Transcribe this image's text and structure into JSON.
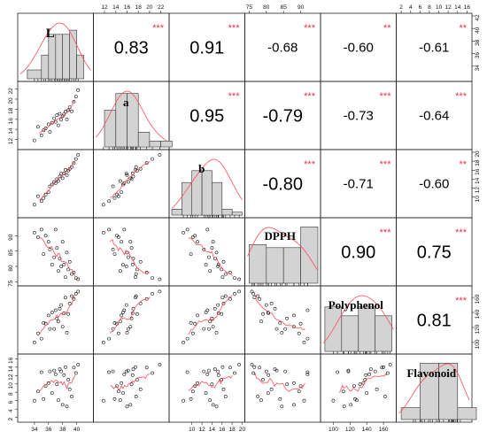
{
  "chart_data": {
    "type": "scatter-matrix",
    "variables": [
      "L",
      "a",
      "b",
      "DPPH",
      "Polyphenol",
      "Flavonoid"
    ],
    "ranges": [
      [
        32,
        42
      ],
      [
        10.5,
        23
      ],
      [
        6,
        20
      ],
      [
        74.5,
        95
      ],
      [
        88,
        172
      ],
      [
        1.5,
        16.5
      ]
    ],
    "axis_ticks": {
      "bottom": [
        {
          "var": 0,
          "ticks": [
            34,
            36,
            38,
            40
          ]
        },
        {
          "var": 2,
          "ticks": [
            10,
            12,
            14,
            16,
            18,
            20
          ]
        },
        {
          "var": 4,
          "ticks": [
            100,
            120,
            140,
            160
          ]
        }
      ],
      "top": [
        {
          "var": 1,
          "ticks": [
            12,
            14,
            16,
            18,
            20,
            22
          ]
        },
        {
          "var": 3,
          "ticks": [
            75,
            80,
            85,
            90
          ]
        },
        {
          "var": 5,
          "ticks": [
            2,
            4,
            6,
            8,
            10,
            12,
            14,
            16
          ]
        }
      ],
      "left": [
        {
          "var": 1,
          "ticks": [
            12,
            14,
            16,
            18,
            20,
            22
          ]
        },
        {
          "var": 3,
          "ticks": [
            75,
            80,
            85,
            90
          ]
        },
        {
          "var": 5,
          "ticks": [
            2,
            4,
            6,
            8,
            10,
            12,
            14,
            16
          ]
        }
      ],
      "right": [
        {
          "var": 0,
          "ticks": [
            34,
            36,
            38,
            40,
            42
          ]
        },
        {
          "var": 2,
          "ticks": [
            10,
            12,
            14,
            16,
            18,
            20
          ]
        },
        {
          "var": 4,
          "ticks": [
            100,
            120,
            140,
            160
          ]
        }
      ]
    },
    "correlations": [
      {
        "row": 0,
        "col": 1,
        "r": "0.83",
        "stars": "***"
      },
      {
        "row": 0,
        "col": 2,
        "r": "0.91",
        "stars": "***"
      },
      {
        "row": 0,
        "col": 3,
        "r": "-0.68",
        "stars": "***"
      },
      {
        "row": 0,
        "col": 4,
        "r": "-0.60",
        "stars": "**"
      },
      {
        "row": 0,
        "col": 5,
        "r": "-0.61",
        "stars": "**"
      },
      {
        "row": 1,
        "col": 2,
        "r": "0.95",
        "stars": "***"
      },
      {
        "row": 1,
        "col": 3,
        "r": "-0.79",
        "stars": "***"
      },
      {
        "row": 1,
        "col": 4,
        "r": "-0.73",
        "stars": "***"
      },
      {
        "row": 1,
        "col": 5,
        "r": "-0.64",
        "stars": "***"
      },
      {
        "row": 2,
        "col": 3,
        "r": "-0.80",
        "stars": "***"
      },
      {
        "row": 2,
        "col": 4,
        "r": "-0.71",
        "stars": "***"
      },
      {
        "row": 2,
        "col": 5,
        "r": "-0.60",
        "stars": "**"
      },
      {
        "row": 3,
        "col": 4,
        "r": "0.90",
        "stars": "***"
      },
      {
        "row": 3,
        "col": 5,
        "r": "0.75",
        "stars": "***"
      },
      {
        "row": 4,
        "col": 5,
        "r": "0.81",
        "stars": "***"
      }
    ],
    "histograms": [
      {
        "var": 0,
        "bins": [
          33,
          35,
          36,
          37,
          38,
          39,
          40,
          41
        ],
        "heights": [
          0.15,
          0.4,
          0.75,
          0.75,
          0.75,
          0.82,
          0.4
        ]
      },
      {
        "var": 1,
        "bins": [
          12,
          14,
          16,
          18,
          20,
          22,
          24
        ],
        "heights": [
          0.62,
          0.9,
          0.9,
          0.25,
          0.1,
          0.1
        ]
      },
      {
        "var": 2,
        "bins": [
          6,
          8,
          10,
          12,
          14,
          16,
          18,
          20
        ],
        "heights": [
          0.1,
          0.55,
          0.75,
          0.75,
          0.55,
          0.1,
          0.05
        ]
      },
      {
        "var": 3,
        "bins": [
          75,
          80,
          85,
          90,
          95
        ],
        "heights": [
          0.65,
          0.6,
          0.6,
          0.95
        ]
      },
      {
        "var": 4,
        "bins": [
          90,
          110,
          130,
          150,
          170
        ],
        "heights": [
          0.75,
          0.6,
          0.75,
          0.6
        ]
      },
      {
        "var": 5,
        "bins": [
          2,
          6,
          10,
          14,
          18
        ],
        "heights": [
          0.2,
          0.95,
          0.95,
          0.2
        ]
      }
    ],
    "samples": [
      [
        34.0,
        11.8,
        8.3,
        91.0,
        100.0,
        6.0
      ],
      [
        34.5,
        14.5,
        10.2,
        89.5,
        112.0,
        8.2
      ],
      [
        35.0,
        12.8,
        9.1,
        92.0,
        105.0,
        12.8
      ],
      [
        35.3,
        13.8,
        9.8,
        84.0,
        126.0,
        6.4
      ],
      [
        35.6,
        14.2,
        10.6,
        90.0,
        125.0,
        9.5
      ],
      [
        36.0,
        15.0,
        11.1,
        88.0,
        136.0,
        10.2
      ],
      [
        36.2,
        13.5,
        12.4,
        85.5,
        118.0,
        13.0
      ],
      [
        36.5,
        15.3,
        12.8,
        80.5,
        140.0,
        7.8
      ],
      [
        36.8,
        16.2,
        13.4,
        83.0,
        118.0,
        13.2
      ],
      [
        37.0,
        15.5,
        13.1,
        92.0,
        143.0,
        12.3
      ],
      [
        37.2,
        16.8,
        14.0,
        86.0,
        132.0,
        9.9
      ],
      [
        37.4,
        14.8,
        13.6,
        78.5,
        128.0,
        6.1
      ],
      [
        37.6,
        17.1,
        14.6,
        82.5,
        145.0,
        13.5
      ],
      [
        37.8,
        15.9,
        15.2,
        80.0,
        150.0,
        13.0
      ],
      [
        38.0,
        16.6,
        14.2,
        88.0,
        121.0,
        5.0
      ],
      [
        38.2,
        17.0,
        15.3,
        80.6,
        139.0,
        12.1
      ],
      [
        38.4,
        17.5,
        16.1,
        76.5,
        160.0,
        14.0
      ],
      [
        38.6,
        16.0,
        14.9,
        84.5,
        113.0,
        4.6
      ],
      [
        38.8,
        17.8,
        15.9,
        79.0,
        138.0,
        11.0
      ],
      [
        39.0,
        18.4,
        16.3,
        81.5,
        152.0,
        8.7
      ],
      [
        39.3,
        17.6,
        16.7,
        77.5,
        162.0,
        7.0
      ],
      [
        39.6,
        19.5,
        17.6,
        78.0,
        158.0,
        13.9
      ],
      [
        39.9,
        20.5,
        18.5,
        76.2,
        165.0,
        12.6
      ],
      [
        40.2,
        21.8,
        19.4,
        75.8,
        168.0,
        14.6
      ]
    ],
    "smooth_color": "#ff4d5a",
    "star_color": "#e8324a",
    "bar_color": "#d3d3d3"
  }
}
